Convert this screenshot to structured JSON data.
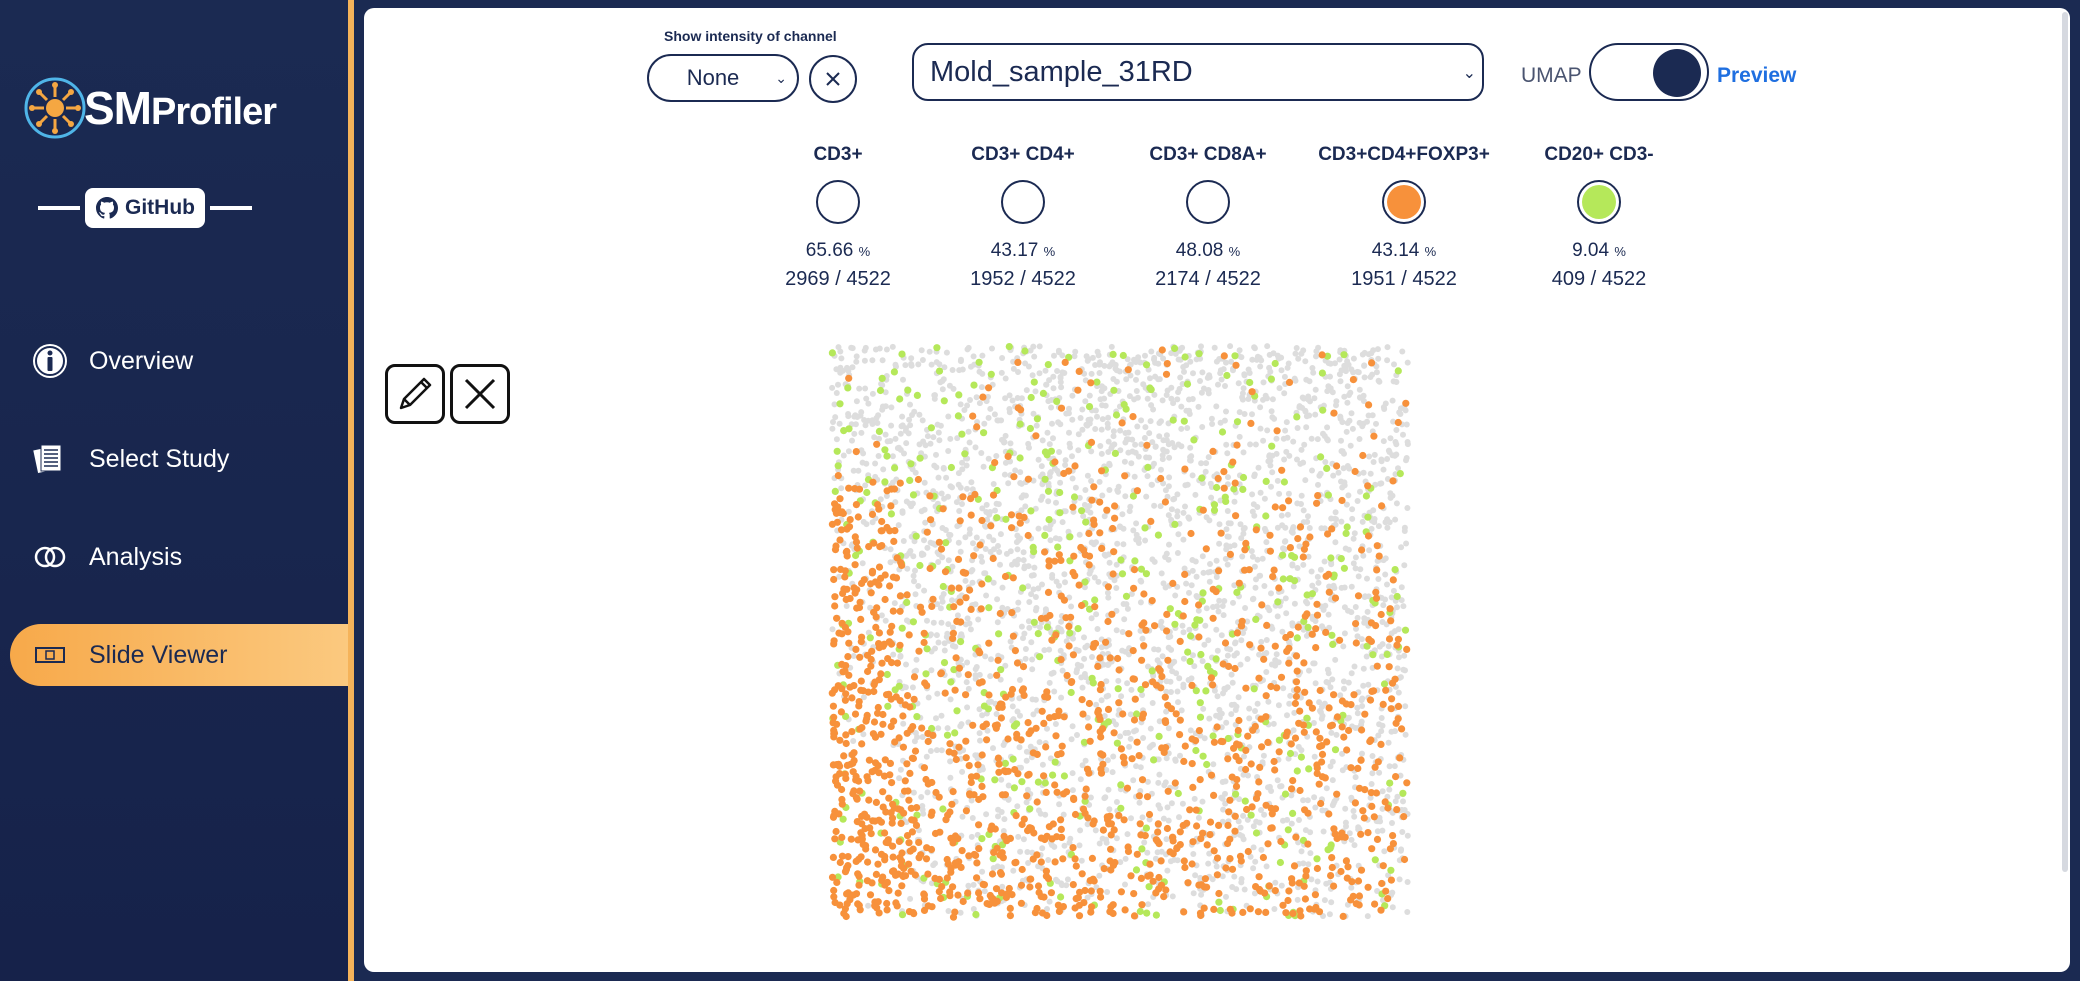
{
  "brand": {
    "name_sm": "SM",
    "name_rest": "Profiler",
    "github_label": "GitHub",
    "accent": "#f5b35a",
    "navy": "#1b2a52"
  },
  "nav": {
    "items": [
      {
        "label": "Overview",
        "icon": "info-icon"
      },
      {
        "label": "Select Study",
        "icon": "documents-icon"
      },
      {
        "label": "Analysis",
        "icon": "venn-icon"
      },
      {
        "label": "Slide Viewer",
        "icon": "slide-icon",
        "active": true
      }
    ]
  },
  "controls": {
    "intensity_label": "Show intensity of channel",
    "intensity_value": "None",
    "sample_value": "Mold_sample_31RD",
    "umap_label": "UMAP",
    "preview_label": "Preview",
    "umap_toggle_on": true
  },
  "phenotypes": [
    {
      "name": "CD3+",
      "pct": "65.66",
      "unit": "%",
      "count": "2969 / 4522",
      "selected": false,
      "color": ""
    },
    {
      "name": "CD3+ CD4+",
      "pct": "43.17",
      "unit": "%",
      "count": "1952 / 4522",
      "selected": false,
      "color": ""
    },
    {
      "name": "CD3+ CD8A+",
      "pct": "48.08",
      "unit": "%",
      "count": "2174 / 4522",
      "selected": false,
      "color": ""
    },
    {
      "name": "CD3+CD4+FOXP3+",
      "pct": "43.14",
      "unit": "%",
      "count": "1951 / 4522",
      "selected": true,
      "color": "#f7913b"
    },
    {
      "name": "CD20+ CD3-",
      "pct": "9.04",
      "unit": "%",
      "count": "409 / 4522",
      "selected": true,
      "color": "#b5e85a"
    }
  ],
  "scatter": {
    "total_cells": 4522,
    "background_color": "#dddddd",
    "series": [
      {
        "name": "CD3+CD4+FOXP3+",
        "color": "#f7913b",
        "count": 1951
      },
      {
        "name": "CD20+ CD3-",
        "color": "#b5e85a",
        "count": 409
      }
    ]
  }
}
